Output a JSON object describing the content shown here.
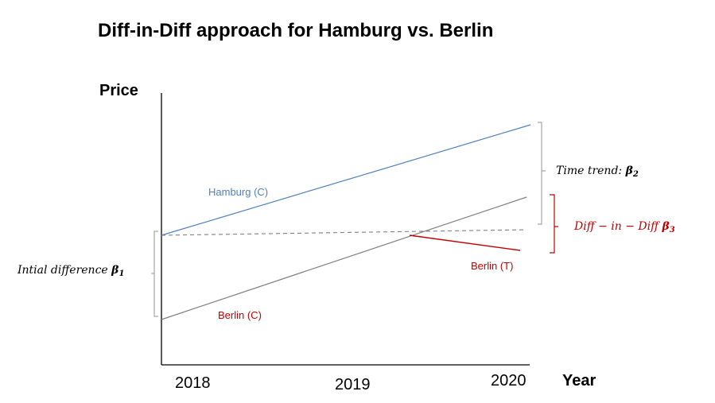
{
  "title": "Diff-in-Diff approach for Hamburg vs. Berlin",
  "y_axis_label": "Price",
  "x_axis_label": "Year",
  "x_ticks": [
    "2018",
    "2019",
    "2020"
  ],
  "lines": {
    "hamburg_control": {
      "label": "Hamburg (C)",
      "color": "#4f81bd"
    },
    "berlin_control": {
      "label": "Berlin (C)",
      "color": "#7f7f7f",
      "label_color": "#c00000"
    },
    "berlin_treated": {
      "label": "Berlin (T)",
      "color": "#c00000"
    },
    "counterfactual": {
      "color": "#7f7f7f",
      "style": "dashed"
    }
  },
  "annotations": {
    "initial_difference": {
      "text": "Intial difference ",
      "symbol": "β",
      "subscript": "1",
      "color": "#000000"
    },
    "time_trend": {
      "text": "Time trend: ",
      "symbol": "β",
      "subscript": "2",
      "color": "#000000"
    },
    "diff_in_diff": {
      "text": "Diff − in − Diff ",
      "symbol": "β",
      "subscript": "3",
      "color": "#c00000"
    }
  }
}
